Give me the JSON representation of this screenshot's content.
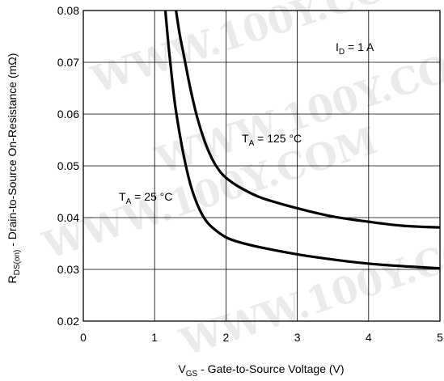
{
  "watermark": "WWW.100Y.COM",
  "chart_data": {
    "type": "line",
    "xlabel_main": "V",
    "xlabel_sub": "GS",
    "xlabel_rest": " - Gate-to-Source Voltage (V)",
    "ylabel_main": "R",
    "ylabel_sub": "DS(on)",
    "ylabel_rest": " - Drain-to-Source On-Resistance (mΩ)",
    "xlim": [
      0,
      5
    ],
    "ylim": [
      0.02,
      0.08
    ],
    "x_ticks": [
      "0",
      "1",
      "2",
      "3",
      "4",
      "5"
    ],
    "y_ticks": [
      "0.02",
      "0.03",
      "0.04",
      "0.05",
      "0.06",
      "0.07",
      "0.08"
    ],
    "grid": true,
    "annotations": [
      {
        "main": "I",
        "sub": "D",
        "rest": " = 1 A"
      },
      {
        "main": "T",
        "sub": "A",
        "rest": " = 125 °C"
      },
      {
        "main": "T",
        "sub": "A",
        "rest": " = 25 °C"
      }
    ],
    "series": [
      {
        "x": [
          1.15,
          1.2,
          1.25,
          1.3,
          1.4,
          1.5,
          1.6,
          1.7,
          1.8,
          2.0,
          2.2,
          2.5,
          3.0,
          3.5,
          4.0,
          4.5,
          5.0
        ],
        "y": [
          0.08,
          0.0725,
          0.066,
          0.0605,
          0.0525,
          0.0465,
          0.0425,
          0.0398,
          0.0382,
          0.0362,
          0.0352,
          0.0342,
          0.0329,
          0.0319,
          0.0311,
          0.0306,
          0.0302
        ]
      },
      {
        "x": [
          1.3,
          1.35,
          1.4,
          1.5,
          1.6,
          1.7,
          1.8,
          1.9,
          2.0,
          2.2,
          2.5,
          3.0,
          3.5,
          4.0,
          4.5,
          5.0
        ],
        "y": [
          0.08,
          0.0755,
          0.072,
          0.065,
          0.0592,
          0.0548,
          0.0515,
          0.0492,
          0.0477,
          0.0458,
          0.0438,
          0.0418,
          0.0402,
          0.0392,
          0.0384,
          0.0381
        ]
      }
    ]
  }
}
